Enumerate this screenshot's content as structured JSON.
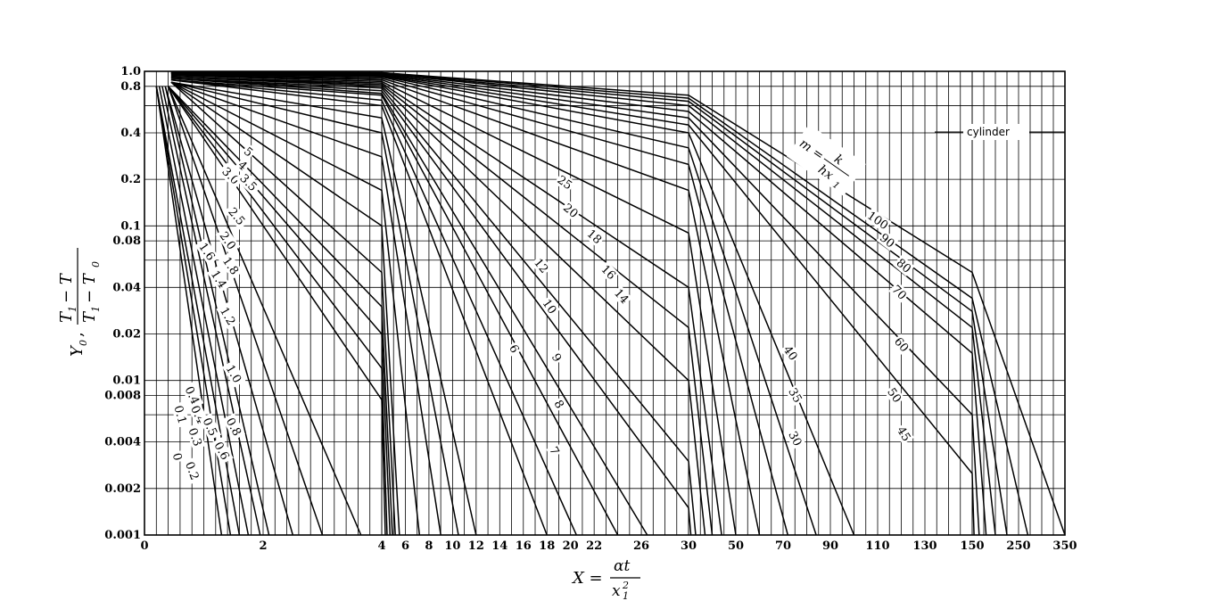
{
  "chart_data": {
    "type": "line",
    "title": "",
    "annotation": "cylinder",
    "parameter_formula": {
      "lhs": "m =",
      "num": "k",
      "den": "hx",
      "den_sub": "1"
    },
    "ylabel": {
      "prefix": "Y",
      "prefix_sub": "0",
      "sep": ",",
      "num": "T",
      "num_sub": "1",
      "num_rest": "− T",
      "den": "T",
      "den_sub": "1",
      "den_rest": "− T",
      "den_sub2": "0"
    },
    "xlabel": {
      "lhs": "X =",
      "num": "αt",
      "den": "x",
      "den_sub": "1",
      "den_sup": "2"
    },
    "y_scale": "log",
    "ylim": [
      0.001,
      1.0
    ],
    "y_ticks": [
      {
        "v": 1.0,
        "label": "1.0"
      },
      {
        "v": 0.8,
        "label": "0.8"
      },
      {
        "v": 0.4,
        "label": "0.4"
      },
      {
        "v": 0.2,
        "label": "0.2"
      },
      {
        "v": 0.1,
        "label": "0.1"
      },
      {
        "v": 0.08,
        "label": "0.08"
      },
      {
        "v": 0.04,
        "label": "0.04"
      },
      {
        "v": 0.02,
        "label": "0.02"
      },
      {
        "v": 0.01,
        "label": "0.01"
      },
      {
        "v": 0.008,
        "label": "0.008"
      },
      {
        "v": 0.004,
        "label": "0.004"
      },
      {
        "v": 0.002,
        "label": "0.002"
      },
      {
        "v": 0.001,
        "label": "0.001"
      }
    ],
    "y_grid": [
      1.0,
      0.8,
      0.6,
      0.4,
      0.2,
      0.1,
      0.08,
      0.06,
      0.04,
      0.02,
      0.01,
      0.008,
      0.006,
      0.004,
      0.002,
      0.001
    ],
    "x_segments": [
      {
        "from": 0,
        "to": 4,
        "minor": 0.2
      },
      {
        "from": 4,
        "to": 30,
        "minor": 1
      },
      {
        "from": 30,
        "to": 150,
        "minor": 5
      },
      {
        "from": 150,
        "to": 350,
        "minor": 25
      }
    ],
    "x_ticks": [
      "0",
      "2",
      "4",
      "6",
      "8",
      "10",
      "12",
      "14",
      "16",
      "18",
      "20",
      "22",
      "26",
      "30",
      "50",
      "70",
      "90",
      "110",
      "130",
      "150",
      "250",
      "350"
    ],
    "grid": true,
    "series": [
      {
        "name": "0",
        "points": [
          [
            0.2,
            0.8
          ],
          [
            1.3,
            0.001
          ]
        ]
      },
      {
        "name": "0.1",
        "points": [
          [
            0.2,
            0.8
          ],
          [
            1.45,
            0.001
          ]
        ]
      },
      {
        "name": "0.2",
        "points": [
          [
            0.2,
            0.8
          ],
          [
            1.6,
            0.001
          ]
        ]
      },
      {
        "name": "0.3",
        "points": [
          [
            0.25,
            0.8
          ],
          [
            1.75,
            0.001
          ]
        ]
      },
      {
        "name": "0.4",
        "points": [
          [
            0.3,
            0.8
          ],
          [
            1.95,
            0.001
          ]
        ]
      },
      {
        "name": "0.5",
        "points": [
          [
            0.35,
            0.8
          ],
          [
            2.1,
            0.001
          ]
        ]
      },
      {
        "name": "0.6",
        "points": [
          [
            0.35,
            0.8
          ],
          [
            2.5,
            0.001
          ]
        ]
      },
      {
        "name": "0.8",
        "points": [
          [
            0.4,
            0.8
          ],
          [
            3.0,
            0.001
          ]
        ]
      },
      {
        "name": "1.0",
        "points": [
          [
            0.4,
            0.8
          ],
          [
            3.65,
            0.001
          ]
        ]
      },
      {
        "name": "1.2",
        "points": [
          [
            0.4,
            0.8
          ],
          [
            4.0,
            0.0075
          ],
          [
            4.3,
            0.001
          ]
        ]
      },
      {
        "name": "1.4",
        "points": [
          [
            0.4,
            0.8
          ],
          [
            4.0,
            0.012
          ],
          [
            4.45,
            0.001
          ]
        ]
      },
      {
        "name": "1.6",
        "points": [
          [
            0.4,
            0.8
          ],
          [
            4.0,
            0.02
          ],
          [
            4.7,
            0.001
          ]
        ]
      },
      {
        "name": "1.8",
        "points": [
          [
            0.4,
            0.8
          ],
          [
            4.0,
            0.03
          ],
          [
            4.9,
            0.001
          ]
        ]
      },
      {
        "name": "2.0",
        "points": [
          [
            0.45,
            0.85
          ],
          [
            4.0,
            0.05
          ],
          [
            5.15,
            0.001
          ]
        ]
      },
      {
        "name": "2.5",
        "points": [
          [
            0.45,
            0.85
          ],
          [
            4.0,
            0.1
          ],
          [
            5.5,
            0.001
          ]
        ]
      },
      {
        "name": "3.0",
        "points": [
          [
            0.45,
            0.85
          ],
          [
            4.0,
            0.17
          ],
          [
            7.2,
            0.001
          ]
        ]
      },
      {
        "name": "3.5",
        "points": [
          [
            0.45,
            0.85
          ],
          [
            4.0,
            0.28
          ],
          [
            9.0,
            0.001
          ]
        ]
      },
      {
        "name": "4",
        "points": [
          [
            0.45,
            0.85
          ],
          [
            4.0,
            0.4
          ],
          [
            10.5,
            0.001
          ]
        ]
      },
      {
        "name": "5",
        "points": [
          [
            0.45,
            0.85
          ],
          [
            4.0,
            0.5
          ],
          [
            12.0,
            0.001
          ]
        ]
      },
      {
        "name": "6",
        "points": [
          [
            0.45,
            0.88
          ],
          [
            4.0,
            0.6
          ],
          [
            18.0,
            0.001
          ]
        ]
      },
      {
        "name": "7",
        "points": [
          [
            0.45,
            0.88
          ],
          [
            4.0,
            0.65
          ],
          [
            20.5,
            0.001
          ]
        ]
      },
      {
        "name": "8",
        "points": [
          [
            0.45,
            0.88
          ],
          [
            4.0,
            0.7
          ],
          [
            24.0,
            0.001
          ]
        ]
      },
      {
        "name": "9",
        "points": [
          [
            0.45,
            0.9
          ],
          [
            4.0,
            0.72
          ],
          [
            26.5,
            0.001
          ]
        ]
      },
      {
        "name": "10",
        "points": [
          [
            0.45,
            0.9
          ],
          [
            4.0,
            0.75
          ],
          [
            30.0,
            0.0015
          ],
          [
            31.0,
            0.001
          ]
        ]
      },
      {
        "name": "12",
        "points": [
          [
            0.45,
            0.9
          ],
          [
            4.0,
            0.78
          ],
          [
            30.0,
            0.003
          ],
          [
            33.0,
            0.001
          ]
        ]
      },
      {
        "name": "14",
        "points": [
          [
            0.45,
            0.92
          ],
          [
            4.0,
            0.8
          ],
          [
            30.0,
            0.01
          ],
          [
            37.0,
            0.001
          ]
        ]
      },
      {
        "name": "16",
        "points": [
          [
            0.45,
            0.92
          ],
          [
            4.0,
            0.82
          ],
          [
            30.0,
            0.022
          ],
          [
            40.0,
            0.001
          ]
        ]
      },
      {
        "name": "18",
        "points": [
          [
            0.45,
            0.92
          ],
          [
            4.0,
            0.84
          ],
          [
            30.0,
            0.04
          ],
          [
            44.0,
            0.001
          ]
        ]
      },
      {
        "name": "20",
        "points": [
          [
            0.45,
            0.94
          ],
          [
            4.0,
            0.86
          ],
          [
            30.0,
            0.09
          ],
          [
            50.0,
            0.001
          ]
        ]
      },
      {
        "name": "25",
        "points": [
          [
            0.45,
            0.95
          ],
          [
            4.0,
            0.88
          ],
          [
            30.0,
            0.17
          ],
          [
            60.0,
            0.001
          ]
        ]
      },
      {
        "name": "30",
        "points": [
          [
            0.45,
            0.95
          ],
          [
            4.0,
            0.9
          ],
          [
            30.0,
            0.25
          ],
          [
            72.0,
            0.001
          ]
        ]
      },
      {
        "name": "35",
        "points": [
          [
            0.45,
            0.96
          ],
          [
            4.0,
            0.92
          ],
          [
            30.0,
            0.32
          ],
          [
            84.0,
            0.001
          ]
        ]
      },
      {
        "name": "40",
        "points": [
          [
            0.45,
            0.97
          ],
          [
            4.0,
            0.93
          ],
          [
            30.0,
            0.4
          ],
          [
            100.0,
            0.001
          ]
        ]
      },
      {
        "name": "45",
        "points": [
          [
            0.45,
            0.97
          ],
          [
            4.0,
            0.94
          ],
          [
            30.0,
            0.45
          ],
          [
            150.0,
            0.0025
          ],
          [
            154.0,
            0.001
          ]
        ]
      },
      {
        "name": "50",
        "points": [
          [
            0.45,
            0.97
          ],
          [
            4.0,
            0.95
          ],
          [
            30.0,
            0.5
          ],
          [
            150.0,
            0.006
          ],
          [
            165.0,
            0.001
          ]
        ]
      },
      {
        "name": "60",
        "points": [
          [
            0.45,
            0.98
          ],
          [
            4.0,
            0.96
          ],
          [
            30.0,
            0.55
          ],
          [
            150.0,
            0.015
          ],
          [
            180.0,
            0.001
          ]
        ]
      },
      {
        "name": "70",
        "points": [
          [
            0.45,
            0.98
          ],
          [
            4.0,
            0.97
          ],
          [
            30.0,
            0.6
          ],
          [
            150.0,
            0.022
          ],
          [
            200.0,
            0.001
          ]
        ]
      },
      {
        "name": "80",
        "points": [
          [
            0.45,
            0.98
          ],
          [
            4.0,
            0.97
          ],
          [
            30.0,
            0.64
          ],
          [
            150.0,
            0.028
          ],
          [
            225.0,
            0.001
          ]
        ]
      },
      {
        "name": "90",
        "points": [
          [
            0.45,
            0.99
          ],
          [
            4.0,
            0.98
          ],
          [
            30.0,
            0.67
          ],
          [
            150.0,
            0.034
          ],
          [
            270.0,
            0.001
          ]
        ]
      },
      {
        "name": "100",
        "points": [
          [
            0.45,
            0.99
          ],
          [
            4.0,
            0.98
          ],
          [
            30.0,
            0.7
          ],
          [
            150.0,
            0.05
          ],
          [
            350.0,
            0.001
          ]
        ]
      }
    ],
    "curve_labels": [
      {
        "text": "0",
        "x": 0.55,
        "y": 0.0032,
        "rot": 75
      },
      {
        "text": "0.1",
        "x": 0.6,
        "y": 0.006,
        "rot": 75
      },
      {
        "text": "0.2",
        "x": 0.8,
        "y": 0.0026,
        "rot": 70
      },
      {
        "text": "0.3",
        "x": 0.85,
        "y": 0.0043,
        "rot": 70
      },
      {
        "text": "0.4",
        "x": 0.8,
        "y": 0.008,
        "rot": 65
      },
      {
        "text": "0.4",
        "x": 0.9,
        "y": 0.006,
        "rot": 65
      },
      {
        "text": "0.5",
        "x": 1.1,
        "y": 0.005,
        "rot": 65
      },
      {
        "text": "0.6",
        "x": 1.3,
        "y": 0.0035,
        "rot": 62
      },
      {
        "text": "0.8",
        "x": 1.5,
        "y": 0.005,
        "rot": 62
      },
      {
        "text": "1.0",
        "x": 1.5,
        "y": 0.011,
        "rot": 60
      },
      {
        "text": "1.2",
        "x": 1.4,
        "y": 0.026,
        "rot": 60
      },
      {
        "text": "1.4",
        "x": 1.25,
        "y": 0.045,
        "rot": 58
      },
      {
        "text": "1.6",
        "x": 1.05,
        "y": 0.068,
        "rot": 55
      },
      {
        "text": "1.8",
        "x": 1.45,
        "y": 0.055,
        "rot": 55
      },
      {
        "text": "2.0",
        "x": 1.4,
        "y": 0.08,
        "rot": 55
      },
      {
        "text": "2.5",
        "x": 1.55,
        "y": 0.115,
        "rot": 50
      },
      {
        "text": "3.0",
        "x": 1.45,
        "y": 0.21,
        "rot": 45
      },
      {
        "text": "3.5",
        "x": 1.75,
        "y": 0.19,
        "rot": 45
      },
      {
        "text": "4",
        "x": 1.65,
        "y": 0.245,
        "rot": 42
      },
      {
        "text": "5",
        "x": 1.75,
        "y": 0.3,
        "rot": 40
      },
      {
        "text": "6",
        "x": 15.2,
        "y": 0.016,
        "rot": 62
      },
      {
        "text": "7",
        "x": 18.6,
        "y": 0.0035,
        "rot": 62
      },
      {
        "text": "8",
        "x": 19.0,
        "y": 0.007,
        "rot": 60
      },
      {
        "text": "9",
        "x": 18.8,
        "y": 0.014,
        "rot": 58
      },
      {
        "text": "10",
        "x": 18.2,
        "y": 0.03,
        "rot": 55
      },
      {
        "text": "12",
        "x": 17.5,
        "y": 0.055,
        "rot": 50
      },
      {
        "text": "14",
        "x": 24.3,
        "y": 0.035,
        "rot": 48
      },
      {
        "text": "16",
        "x": 23.2,
        "y": 0.05,
        "rot": 45
      },
      {
        "text": "18",
        "x": 22.0,
        "y": 0.085,
        "rot": 42
      },
      {
        "text": "20",
        "x": 20.0,
        "y": 0.125,
        "rot": 40
      },
      {
        "text": "25",
        "x": 19.5,
        "y": 0.19,
        "rot": 35
      },
      {
        "text": "30",
        "x": 75.0,
        "y": 0.0042,
        "rot": 62
      },
      {
        "text": "35",
        "x": 75.0,
        "y": 0.008,
        "rot": 60
      },
      {
        "text": "40",
        "x": 73.0,
        "y": 0.015,
        "rot": 55
      },
      {
        "text": "45",
        "x": 121.0,
        "y": 0.0045,
        "rot": 58
      },
      {
        "text": "50",
        "x": 117.0,
        "y": 0.008,
        "rot": 55
      },
      {
        "text": "60",
        "x": 120.0,
        "y": 0.017,
        "rot": 50
      },
      {
        "text": "70",
        "x": 119.0,
        "y": 0.037,
        "rot": 45
      },
      {
        "text": "80",
        "x": 121.0,
        "y": 0.055,
        "rot": 40
      },
      {
        "text": "90",
        "x": 114.0,
        "y": 0.08,
        "rot": 38
      },
      {
        "text": "100",
        "x": 110.0,
        "y": 0.108,
        "rot": 35
      }
    ]
  }
}
